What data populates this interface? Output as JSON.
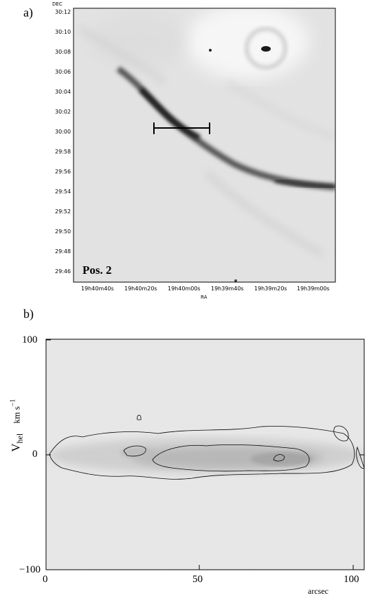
{
  "panel_a": {
    "label": "a)",
    "axis_dec_label": "DEC",
    "axis_ra_label": "RA",
    "dec_ticks": [
      "30:12",
      "30:10",
      "30:08",
      "30:06",
      "30:04",
      "30:02",
      "30:00",
      "29:58",
      "29:56",
      "29:54",
      "29:52",
      "29:50",
      "29:48",
      "29:46"
    ],
    "ra_ticks": [
      "19h40m40s",
      "19h40m20s",
      "19h40m00s",
      "19h39m40s",
      "19h39m20s",
      "19h39m00s"
    ],
    "position_label": "Pos. 2"
  },
  "panel_b": {
    "label": "b)",
    "ylabel_main": "V",
    "ylabel_sub": "hel",
    "ylabel_unit": "km s",
    "ylabel_exp": "−1",
    "xlabel": "arcsec",
    "x_ticks": [
      "0",
      "50",
      "100"
    ],
    "y_ticks": [
      "100",
      "0",
      "−100"
    ]
  },
  "chart_data": {
    "type": "heatmap",
    "title": "",
    "xlabel": "arcsec",
    "ylabel": "V_hel km s^-1",
    "xlim": [
      0,
      103
    ],
    "ylim": [
      -100,
      100
    ],
    "x_ticks": [
      0,
      50,
      100
    ],
    "y_ticks": [
      -100,
      0,
      100
    ],
    "emission_band": {
      "center_velocity": -5,
      "x_range": [
        3,
        101
      ]
    }
  },
  "colors": {
    "foreground": "#000000",
    "background": "#ffffff",
    "image_gray": "#e8e8e8"
  }
}
